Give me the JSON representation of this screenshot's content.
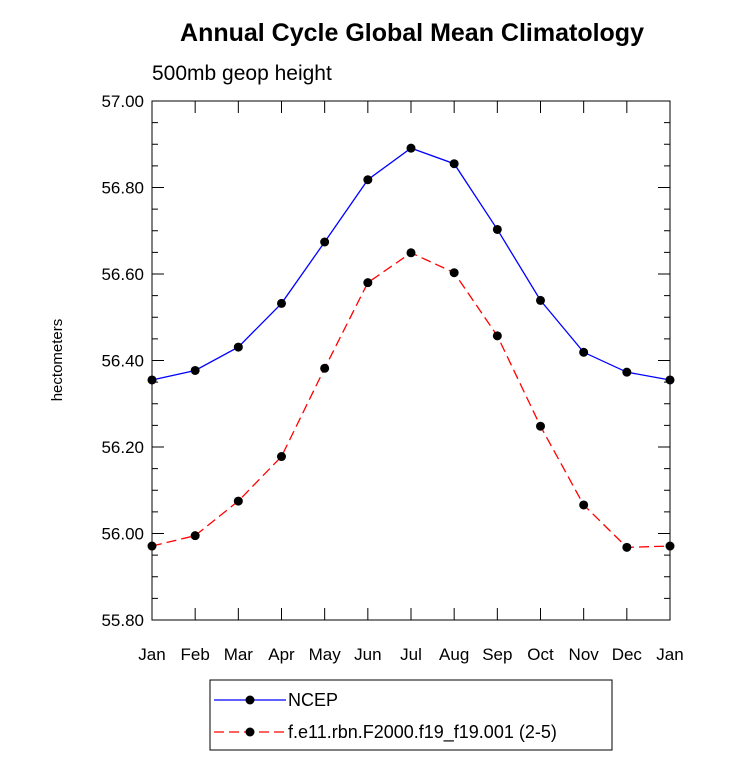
{
  "chart_data": {
    "type": "line",
    "title": "Annual Cycle Global Mean Climatology",
    "subtitle": "500mb geop height",
    "xlabel": "",
    "ylabel": "hectometers",
    "categories": [
      "Jan",
      "Feb",
      "Mar",
      "Apr",
      "May",
      "Jun",
      "Jul",
      "Aug",
      "Sep",
      "Oct",
      "Nov",
      "Dec",
      "Jan"
    ],
    "ylim": [
      55.8,
      57.0
    ],
    "yticks": [
      "55.80",
      "56.00",
      "56.20",
      "56.40",
      "56.60",
      "56.80",
      "57.00"
    ],
    "grid": false,
    "legend_position": "bottom",
    "series": [
      {
        "name": "NCEP",
        "color": "#0000ff",
        "line_style": "solid",
        "marker": "filled-circle",
        "values": [
          56.355,
          56.377,
          56.431,
          56.532,
          56.674,
          56.818,
          56.891,
          56.855,
          56.703,
          56.539,
          56.419,
          56.373,
          56.355
        ]
      },
      {
        "name": "f.e11.rbn.F2000.f19_f19.001 (2-5)",
        "color": "#ff0000",
        "line_style": "dashed",
        "marker": "filled-circle",
        "values": [
          55.971,
          55.995,
          56.075,
          56.178,
          56.382,
          56.58,
          56.649,
          56.603,
          56.457,
          56.248,
          56.066,
          55.968,
          55.971
        ]
      }
    ]
  }
}
